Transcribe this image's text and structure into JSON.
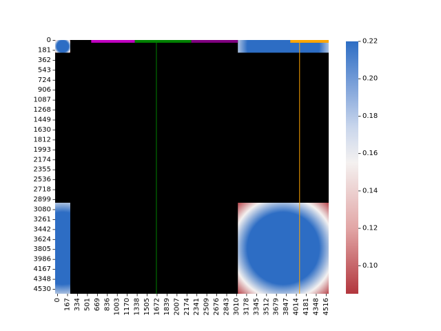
{
  "chart_data": {
    "type": "heatmap",
    "title": "",
    "xlabel": "",
    "ylabel": "",
    "xlim": [
      0,
      4700
    ],
    "ylim": [
      0,
      4600
    ],
    "x_ticks": [
      "0",
      "167",
      "334",
      "501",
      "669",
      "836",
      "1003",
      "1170",
      "1338",
      "1505",
      "1672",
      "1839",
      "2007",
      "2174",
      "2341",
      "2509",
      "2676",
      "2843",
      "3010",
      "3178",
      "3345",
      "3512",
      "3679",
      "3847",
      "4014",
      "4181",
      "4348",
      "4516"
    ],
    "y_ticks": [
      "0",
      "181",
      "362",
      "543",
      "724",
      "906",
      "1087",
      "1268",
      "1449",
      "1630",
      "1812",
      "1993",
      "2174",
      "2355",
      "2536",
      "2718",
      "2899",
      "3080",
      "3261",
      "3442",
      "3624",
      "3805",
      "3986",
      "4167",
      "4348",
      "4530"
    ],
    "colorbar": {
      "min": 0.085,
      "max": 0.22,
      "ticks": [
        "0.10",
        "0.12",
        "0.14",
        "0.16",
        "0.18",
        "0.20",
        "0.22"
      ],
      "colormap": "diverging red-white-blue"
    },
    "colors": {
      "masked": "#000000",
      "high": "#2d6dc4",
      "mid": "#f4f1f0",
      "low": "#b2363d",
      "magenta_segment": "#bf00bf",
      "green_segment": "#008000",
      "purple_segment": "#800080",
      "orange_segment": "#ffa500",
      "green_line": "#008000",
      "orange_line": "#ffa500"
    },
    "regions": [
      {
        "name": "top-left",
        "x_range": [
          0,
          260
        ],
        "y_range": [
          0,
          230
        ],
        "value_interior": 0.22,
        "value_corner": 0.09
      },
      {
        "name": "top-right",
        "x_range": [
          3140,
          4700
        ],
        "y_range": [
          0,
          230
        ],
        "value_interior": 0.22,
        "value_corner": 0.09
      },
      {
        "name": "bottom-left",
        "x_range": [
          0,
          260
        ],
        "y_range": [
          2950,
          4600
        ],
        "value_interior": 0.22,
        "value_corner": 0.09
      },
      {
        "name": "bottom-right",
        "x_range": [
          3140,
          4700
        ],
        "y_range": [
          2950,
          4600
        ],
        "value_interior": 0.22,
        "value_corner": 0.09
      }
    ],
    "top_segments": [
      {
        "color": "magenta_segment",
        "x_range": [
          620,
          1370
        ]
      },
      {
        "color": "green_segment",
        "x_range": [
          1370,
          2340
        ]
      },
      {
        "color": "purple_segment",
        "x_range": [
          2340,
          3140
        ]
      },
      {
        "color": "orange_segment",
        "x_range": [
          4040,
          4700
        ]
      }
    ],
    "vertical_lines": [
      {
        "color": "green_line",
        "x": 1740
      },
      {
        "color": "orange_line",
        "x": 4200
      }
    ]
  }
}
